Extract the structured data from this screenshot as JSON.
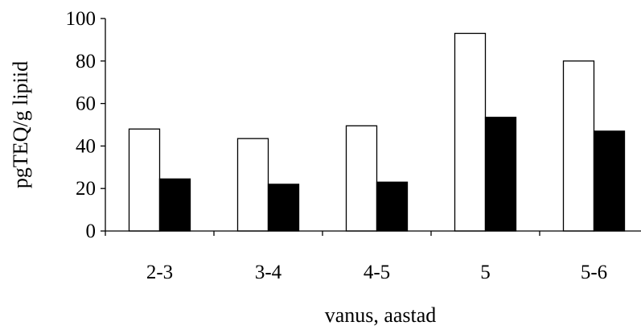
{
  "chart_data": {
    "type": "bar",
    "title": "",
    "xlabel": "vanus, aastad",
    "ylabel": "pgTEQ/g lipiid",
    "categories": [
      "2-3",
      "3-4",
      "4-5",
      "5",
      "5-6"
    ],
    "series": [
      {
        "values": [
          48,
          43.5,
          49.5,
          93,
          80
        ],
        "fill": "#ffffff"
      },
      {
        "values": [
          24.5,
          22,
          23,
          53.5,
          47
        ],
        "fill": "#000000"
      }
    ],
    "ylim": [
      0,
      100
    ],
    "yticks": [
      0,
      20,
      40,
      60,
      80,
      100
    ],
    "grid": false,
    "legend": "none"
  }
}
